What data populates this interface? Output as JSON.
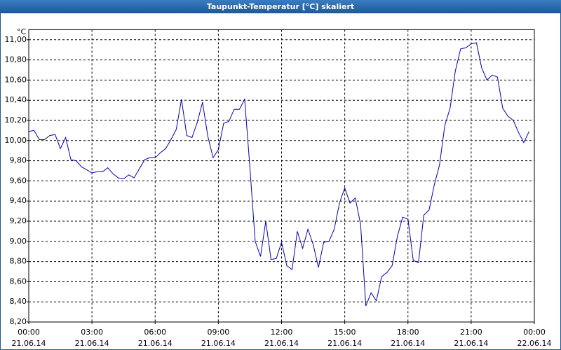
{
  "chart_data": {
    "type": "line",
    "title": "Taupunkt-Temperatur [°C] skaliert",
    "y_unit": "°C",
    "x": [
      "21.06.14 00:00",
      "21.06.14 00:15",
      "21.06.14 00:30",
      "21.06.14 00:45",
      "21.06.14 01:00",
      "21.06.14 01:15",
      "21.06.14 01:30",
      "21.06.14 01:45",
      "21.06.14 02:00",
      "21.06.14 02:15",
      "21.06.14 02:30",
      "21.06.14 02:45",
      "21.06.14 03:00",
      "21.06.14 03:15",
      "21.06.14 03:30",
      "21.06.14 03:45",
      "21.06.14 04:00",
      "21.06.14 04:15",
      "21.06.14 04:30",
      "21.06.14 04:45",
      "21.06.14 05:00",
      "21.06.14 05:15",
      "21.06.14 05:30",
      "21.06.14 05:45",
      "21.06.14 06:00",
      "21.06.14 06:15",
      "21.06.14 06:30",
      "21.06.14 06:45",
      "21.06.14 07:00",
      "21.06.14 07:15",
      "21.06.14 07:30",
      "21.06.14 07:45",
      "21.06.14 08:00",
      "21.06.14 08:15",
      "21.06.14 08:30",
      "21.06.14 08:45",
      "21.06.14 09:00",
      "21.06.14 09:15",
      "21.06.14 09:30",
      "21.06.14 09:45",
      "21.06.14 10:00",
      "21.06.14 10:15",
      "21.06.14 10:30",
      "21.06.14 10:45",
      "21.06.14 11:00",
      "21.06.14 11:15",
      "21.06.14 11:30",
      "21.06.14 11:45",
      "21.06.14 12:00",
      "21.06.14 12:15",
      "21.06.14 12:30",
      "21.06.14 12:45",
      "21.06.14 13:00",
      "21.06.14 13:15",
      "21.06.14 13:30",
      "21.06.14 13:45",
      "21.06.14 14:00",
      "21.06.14 14:15",
      "21.06.14 14:30",
      "21.06.14 14:45",
      "21.06.14 15:00",
      "21.06.14 15:15",
      "21.06.14 15:30",
      "21.06.14 15:45",
      "21.06.14 16:00",
      "21.06.14 16:15",
      "21.06.14 16:30",
      "21.06.14 16:45",
      "21.06.14 17:00",
      "21.06.14 17:15",
      "21.06.14 17:30",
      "21.06.14 17:45",
      "21.06.14 18:00",
      "21.06.14 18:15",
      "21.06.14 18:30",
      "21.06.14 18:45",
      "21.06.14 19:00",
      "21.06.14 19:15",
      "21.06.14 19:30",
      "21.06.14 19:45",
      "21.06.14 20:00",
      "21.06.14 20:15",
      "21.06.14 20:30",
      "21.06.14 20:45",
      "21.06.14 21:00",
      "21.06.14 21:15",
      "21.06.14 21:30",
      "21.06.14 21:45",
      "21.06.14 22:00",
      "21.06.14 22:15",
      "21.06.14 22:30",
      "21.06.14 22:45",
      "21.06.14 23:00",
      "21.06.14 23:15",
      "21.06.14 23:30",
      "21.06.14 23:45"
    ],
    "series": [
      {
        "color": "#0000c8",
        "values": [
          10.09,
          10.1,
          10.01,
          10.01,
          10.05,
          10.06,
          9.92,
          10.03,
          9.81,
          9.8,
          9.74,
          9.71,
          9.68,
          9.69,
          9.69,
          9.73,
          9.67,
          9.63,
          9.62,
          9.66,
          9.63,
          9.72,
          9.81,
          9.83,
          9.83,
          9.88,
          9.92,
          10.01,
          10.11,
          10.41,
          10.05,
          10.03,
          10.18,
          10.38,
          10.04,
          9.83,
          9.91,
          10.17,
          10.19,
          10.31,
          10.31,
          10.41,
          9.73,
          9.0,
          8.85,
          9.2,
          8.82,
          8.83,
          8.99,
          8.76,
          8.72,
          9.1,
          8.93,
          9.12,
          8.97,
          8.74,
          8.99,
          9.0,
          9.12,
          9.38,
          9.53,
          9.38,
          9.43,
          9.17,
          8.36,
          8.49,
          8.41,
          8.65,
          8.69,
          8.76,
          9.05,
          9.24,
          9.22,
          8.81,
          8.79,
          9.26,
          9.31,
          9.56,
          9.76,
          10.15,
          10.32,
          10.69,
          10.91,
          10.92,
          10.96,
          10.97,
          10.72,
          10.6,
          10.65,
          10.63,
          10.32,
          10.24,
          10.2,
          10.08,
          9.98,
          10.09
        ]
      }
    ],
    "xlim": [
      "21.06.14 00:00",
      "22.06.14 00:00"
    ],
    "xticks": [
      {
        "value": "21.06.14 00:00",
        "label": [
          "00:00",
          "21.06.14"
        ]
      },
      {
        "value": "21.06.14 03:00",
        "label": [
          "03:00",
          "21.06.14"
        ]
      },
      {
        "value": "21.06.14 06:00",
        "label": [
          "06:00",
          "21.06.14"
        ]
      },
      {
        "value": "21.06.14 09:00",
        "label": [
          "09:00",
          "21.06.14"
        ]
      },
      {
        "value": "21.06.14 12:00",
        "label": [
          "12:00",
          "21.06.14"
        ]
      },
      {
        "value": "21.06.14 15:00",
        "label": [
          "15:00",
          "21.06.14"
        ]
      },
      {
        "value": "21.06.14 18:00",
        "label": [
          "18:00",
          "21.06.14"
        ]
      },
      {
        "value": "21.06.14 21:00",
        "label": [
          "21:00",
          "21.06.14"
        ]
      },
      {
        "value": "22.06.14 00:00",
        "label": [
          "00:00",
          "22.06.14"
        ]
      }
    ],
    "ylim": [
      8.2,
      11.1
    ],
    "yticks": [
      {
        "value": 8.2,
        "label": "8,20"
      },
      {
        "value": 8.4,
        "label": "8,40"
      },
      {
        "value": 8.6,
        "label": "8,60"
      },
      {
        "value": 8.8,
        "label": "8,80"
      },
      {
        "value": 9.0,
        "label": "9,00"
      },
      {
        "value": 9.2,
        "label": "9,20"
      },
      {
        "value": 9.4,
        "label": "9,40"
      },
      {
        "value": 9.6,
        "label": "9,60"
      },
      {
        "value": 9.8,
        "label": "9,80"
      },
      {
        "value": 10.0,
        "label": "10,00"
      },
      {
        "value": 10.2,
        "label": "10,20"
      },
      {
        "value": 10.4,
        "label": "10,40"
      },
      {
        "value": 10.6,
        "label": "10,60"
      },
      {
        "value": 10.8,
        "label": "10,80"
      },
      {
        "value": 11.0,
        "label": "11,00"
      }
    ],
    "grid": true
  }
}
